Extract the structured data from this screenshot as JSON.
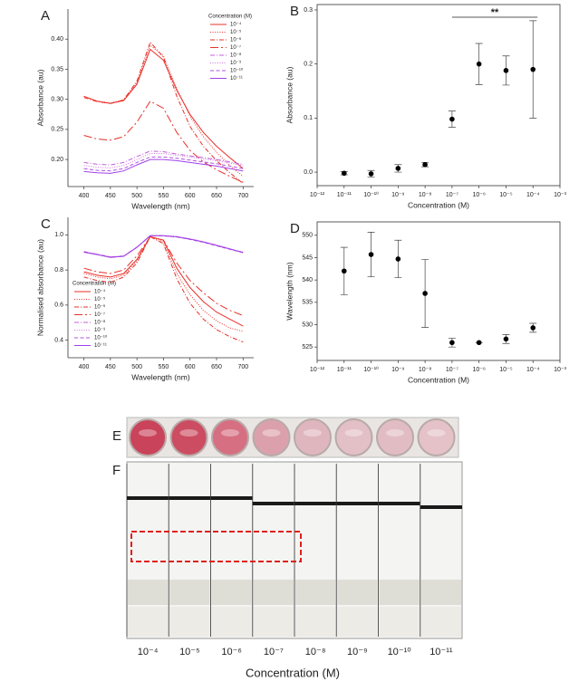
{
  "chart_data": [
    {
      "type": "line",
      "panel": "A",
      "xlabel": "Wavelength (nm)",
      "ylabel": "Absorbance (au)",
      "xlim": [
        370,
        720
      ],
      "ylim": [
        0.155,
        0.45
      ],
      "xticks": [
        400,
        450,
        500,
        550,
        600,
        650,
        700
      ],
      "yticks": [
        {
          "value": 0.2,
          "label": "0.20"
        },
        {
          "value": 0.25,
          "label": "0.25"
        },
        {
          "value": 0.3,
          "label": "0.30"
        },
        {
          "value": 0.35,
          "label": "0.35"
        },
        {
          "value": 0.4,
          "label": "0.40"
        }
      ],
      "legend_title": "Concentration (M)",
      "legend": "upper right",
      "box": false,
      "x": [
        400,
        425,
        450,
        475,
        500,
        525,
        550,
        575,
        600,
        625,
        650,
        675,
        700
      ],
      "series": [
        {
          "name": "10⁻⁴",
          "color": "#e8302a",
          "style": "solid",
          "values": [
            0.305,
            0.297,
            0.293,
            0.298,
            0.325,
            0.383,
            0.365,
            0.315,
            0.275,
            0.245,
            0.222,
            0.203,
            0.185
          ]
        },
        {
          "name": "10⁻⁵",
          "color": "#e8302a",
          "style": "dot",
          "values": [
            0.305,
            0.297,
            0.294,
            0.299,
            0.328,
            0.39,
            0.372,
            0.318,
            0.272,
            0.238,
            0.212,
            0.19,
            0.172
          ]
        },
        {
          "name": "10⁻⁶",
          "color": "#e8302a",
          "style": "dashdot",
          "values": [
            0.303,
            0.296,
            0.293,
            0.299,
            0.33,
            0.395,
            0.37,
            0.305,
            0.255,
            0.222,
            0.198,
            0.178,
            0.16
          ]
        },
        {
          "name": "10⁻⁷",
          "color": "#e8302a",
          "style": "longdashdot",
          "values": [
            0.24,
            0.234,
            0.232,
            0.238,
            0.262,
            0.297,
            0.285,
            0.245,
            0.215,
            0.196,
            0.183,
            0.172,
            0.162
          ]
        },
        {
          "name": "10⁻⁸",
          "color": "#c060d8",
          "style": "dashdot",
          "values": [
            0.195,
            0.192,
            0.191,
            0.195,
            0.205,
            0.214,
            0.213,
            0.209,
            0.206,
            0.203,
            0.2,
            0.196,
            0.192
          ]
        },
        {
          "name": "10⁻⁹",
          "color": "#d070e0",
          "style": "dot",
          "values": [
            0.19,
            0.187,
            0.186,
            0.19,
            0.2,
            0.21,
            0.21,
            0.207,
            0.204,
            0.201,
            0.198,
            0.194,
            0.19
          ]
        },
        {
          "name": "10⁻¹⁰",
          "color": "#b050e0",
          "style": "dash",
          "values": [
            0.185,
            0.182,
            0.181,
            0.185,
            0.195,
            0.204,
            0.204,
            0.202,
            0.199,
            0.196,
            0.193,
            0.189,
            0.185
          ]
        },
        {
          "name": "10⁻¹¹",
          "color": "#a040e8",
          "style": "solid",
          "values": [
            0.18,
            0.178,
            0.177,
            0.181,
            0.191,
            0.2,
            0.2,
            0.198,
            0.195,
            0.192,
            0.189,
            0.185,
            0.181
          ]
        }
      ]
    },
    {
      "type": "errorbar",
      "panel": "B",
      "xlabel": "Concentration (M)",
      "ylabel": "Absorbance (au)",
      "xscale": "log",
      "xlim": [
        1e-12,
        0.001
      ],
      "ylim": [
        -0.025,
        0.31
      ],
      "box": true,
      "color": "#000000",
      "xticks": [
        {
          "value": 1e-12,
          "label": "10⁻¹²"
        },
        {
          "value": 1e-11,
          "label": "10⁻¹¹"
        },
        {
          "value": 1e-10,
          "label": "10⁻¹⁰"
        },
        {
          "value": 1e-09,
          "label": "10⁻⁹"
        },
        {
          "value": 1e-08,
          "label": "10⁻⁸"
        },
        {
          "value": 1e-07,
          "label": "10⁻⁷"
        },
        {
          "value": 1e-06,
          "label": "10⁻⁶"
        },
        {
          "value": 1e-05,
          "label": "10⁻⁵"
        },
        {
          "value": 0.0001,
          "label": "10⁻⁴"
        },
        {
          "value": 0.001,
          "label": "10⁻³"
        }
      ],
      "yticks": [
        {
          "value": 0,
          "label": "0.0"
        },
        {
          "value": 0.1,
          "label": "0.1"
        },
        {
          "value": 0.2,
          "label": "0.2"
        },
        {
          "value": 0.3,
          "label": "0.3"
        }
      ],
      "x": [
        1e-11,
        1e-10,
        1e-09,
        1e-08,
        1e-07,
        1e-06,
        1e-05,
        0.0001
      ],
      "values": [
        -0.002,
        -0.003,
        0.007,
        0.014,
        0.098,
        0.2,
        0.188,
        0.19
      ],
      "errors": [
        0.003,
        0.006,
        0.007,
        0.004,
        0.015,
        0.038,
        0.027,
        0.09
      ],
      "annotation": "**"
    },
    {
      "type": "line",
      "panel": "C",
      "xlabel": "Wavelength (nm)",
      "ylabel": "Normalised absorbance (au)",
      "xlim": [
        370,
        720
      ],
      "ylim": [
        0.3,
        1.1
      ],
      "xticks": [
        400,
        450,
        500,
        550,
        600,
        650,
        700
      ],
      "yticks": [
        0.4,
        0.6,
        0.8,
        {
          "value": 1,
          "label": "1.0"
        }
      ],
      "legend_title": "Concentration (M)",
      "legend": "lower left",
      "box": false,
      "x": [
        400,
        425,
        450,
        475,
        500,
        525,
        550,
        575,
        600,
        625,
        650,
        675,
        700
      ],
      "series": [
        {
          "name": "10⁻⁴",
          "color": "#e8302a",
          "style": "solid",
          "values": [
            0.79,
            0.77,
            0.76,
            0.78,
            0.86,
            0.99,
            0.97,
            0.81,
            0.7,
            0.62,
            0.56,
            0.52,
            0.48
          ]
        },
        {
          "name": "10⁻⁵",
          "color": "#e8302a",
          "style": "dot",
          "values": [
            0.78,
            0.76,
            0.75,
            0.77,
            0.85,
            0.99,
            0.96,
            0.78,
            0.66,
            0.57,
            0.51,
            0.47,
            0.45
          ]
        },
        {
          "name": "10⁻⁶",
          "color": "#e8302a",
          "style": "dashdot",
          "values": [
            0.76,
            0.74,
            0.73,
            0.76,
            0.84,
            0.99,
            0.95,
            0.75,
            0.61,
            0.52,
            0.46,
            0.42,
            0.39
          ]
        },
        {
          "name": "10⁻⁷",
          "color": "#e8302a",
          "style": "longdashdot",
          "values": [
            0.81,
            0.79,
            0.78,
            0.8,
            0.88,
            0.99,
            0.97,
            0.84,
            0.74,
            0.67,
            0.61,
            0.57,
            0.54
          ]
        },
        {
          "name": "10⁻⁸",
          "color": "#c060d8",
          "style": "dashdot",
          "values": [
            0.905,
            0.89,
            0.875,
            0.88,
            0.93,
            0.995,
            0.995,
            0.99,
            0.975,
            0.96,
            0.94,
            0.92,
            0.9
          ]
        },
        {
          "name": "10⁻⁹",
          "color": "#d070e0",
          "style": "dot",
          "values": [
            0.9,
            0.888,
            0.873,
            0.879,
            0.928,
            0.994,
            0.996,
            0.992,
            0.978,
            0.962,
            0.943,
            0.922,
            0.902
          ]
        },
        {
          "name": "10⁻¹⁰",
          "color": "#b050e0",
          "style": "dash",
          "values": [
            0.903,
            0.889,
            0.874,
            0.878,
            0.93,
            0.995,
            0.994,
            0.988,
            0.974,
            0.958,
            0.938,
            0.918,
            0.898
          ]
        },
        {
          "name": "10⁻¹¹",
          "color": "#a040e8",
          "style": "solid",
          "values": [
            0.902,
            0.888,
            0.872,
            0.878,
            0.929,
            0.995,
            0.995,
            0.989,
            0.976,
            0.96,
            0.94,
            0.92,
            0.899
          ]
        }
      ]
    },
    {
      "type": "errorbar",
      "panel": "D",
      "xlabel": "Concentration (M)",
      "ylabel": "Wavelength (nm)",
      "xscale": "log",
      "xlim": [
        1e-12,
        0.001
      ],
      "ylim": [
        522,
        553
      ],
      "box": true,
      "color": "#000000",
      "xticks": [
        {
          "value": 1e-12,
          "label": "10⁻¹²"
        },
        {
          "value": 1e-11,
          "label": "10⁻¹¹"
        },
        {
          "value": 1e-10,
          "label": "10⁻¹⁰"
        },
        {
          "value": 1e-09,
          "label": "10⁻⁹"
        },
        {
          "value": 1e-08,
          "label": "10⁻⁸"
        },
        {
          "value": 1e-07,
          "label": "10⁻⁷"
        },
        {
          "value": 1e-06,
          "label": "10⁻⁶"
        },
        {
          "value": 1e-05,
          "label": "10⁻⁵"
        },
        {
          "value": 0.0001,
          "label": "10⁻⁴"
        },
        {
          "value": 0.001,
          "label": "10⁻³"
        }
      ],
      "yticks": [
        525,
        530,
        535,
        540,
        545,
        550
      ],
      "x": [
        1e-11,
        1e-10,
        1e-09,
        1e-08,
        1e-07,
        1e-06,
        1e-05,
        0.0001
      ],
      "values": [
        542,
        545.7,
        544.7,
        537,
        526,
        526,
        526.8,
        529.3
      ],
      "errors": [
        5.3,
        5,
        4.2,
        7.6,
        1,
        0,
        1,
        1
      ]
    }
  ],
  "photo_panels": {
    "wells": {
      "label": "E"
    },
    "strips": {
      "label": "F",
      "categories": [
        "10⁻⁴",
        "10⁻⁵",
        "10⁻⁶",
        "10⁻⁷",
        "10⁻⁸",
        "10⁻⁹",
        "10⁻¹⁰",
        "10⁻¹¹"
      ],
      "xlabel": "Concentration (M)"
    }
  }
}
